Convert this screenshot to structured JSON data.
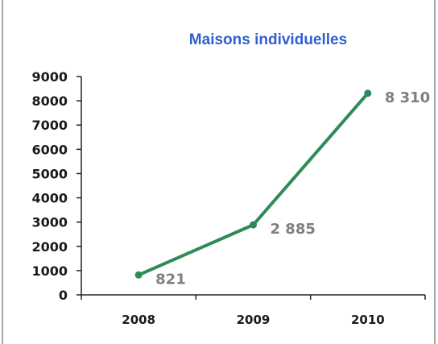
{
  "chart_data": {
    "type": "line",
    "title": "Maisons individuelles",
    "categories": [
      "2008",
      "2009",
      "2010"
    ],
    "series": [
      {
        "values": [
          821,
          2885,
          8310
        ]
      }
    ],
    "data_labels": [
      "821",
      "2 885",
      "8 310"
    ],
    "yticks": [
      "0",
      "1000",
      "2000",
      "3000",
      "4000",
      "5000",
      "6000",
      "7000",
      "8000",
      "9000"
    ],
    "ylim": [
      0,
      9000
    ],
    "grid": false,
    "legend": "none"
  },
  "colors": {
    "line": "#2e8b57",
    "title": "#2f5fd0",
    "data_label": "#7f7f7f",
    "axis": "#222222",
    "frame": "#7f7f7f"
  }
}
